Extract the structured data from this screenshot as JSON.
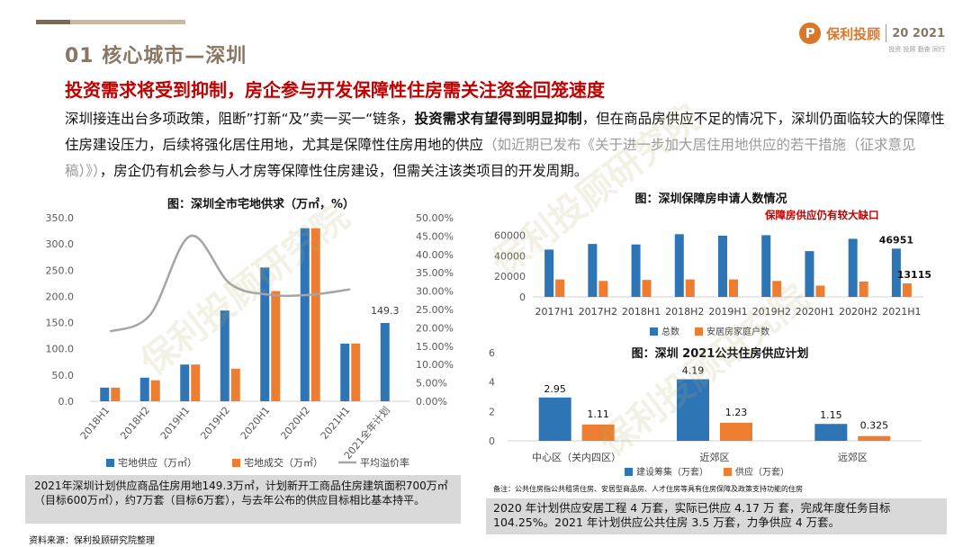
{
  "header": {
    "section_title": "01 核心城市—深圳",
    "headline": "投资需求将受到抑制，房企参与开发保障性住房需关注资金回笼速度",
    "paragraph": {
      "part1": "深圳接连出台多项政策，阻断”打新“及”卖一买一“链条，",
      "part2_bold": "投资需求有望得到明显抑制",
      "part3": "，但在商品房供应不足的情况下，深圳仍面临较大的保障性住房建设压力，后续将强化居住用地，尤其是保障性住房用地的供应",
      "part4_grey": "（如近期已发布《关于进一步加大居住用地供应的若干措施（征求意见稿）》）",
      "part5": "，房企仍有机会参与人才房等保障性住房建设，但需关注该类项目的开发周期。"
    }
  },
  "logo": {
    "mark": "P",
    "text": "保利投顾",
    "year_prefix": "20",
    "year": "2021",
    "subtitle": "投资 投顾  勤奋 同行"
  },
  "watermark": "保利投顾研究院",
  "colors": {
    "blue": "#2e75b6",
    "orange": "#ed7d31",
    "grey_line": "#a5a5a5",
    "title_brown": "#8a7763",
    "headline_red": "#c00000"
  },
  "chart_data": [
    {
      "type": "bar",
      "title": "图：深圳全市宅地供求（万㎡，%）",
      "categories": [
        "2018H1",
        "2018H2",
        "2019H1",
        "2019H2",
        "2020H1",
        "2020H2",
        "2021H1",
        "2021全年计划"
      ],
      "series": [
        {
          "name": "宅地供应（万㎡）",
          "values": [
            26,
            45,
            70,
            173,
            255,
            330,
            110,
            149.3
          ]
        },
        {
          "name": "宅地成交（万㎡）",
          "values": [
            26,
            40,
            70,
            62,
            210,
            330,
            110,
            null
          ]
        },
        {
          "name": "平均溢价率",
          "type": "line",
          "values": [
            0.19,
            0.235,
            0.45,
            0.32,
            0.29,
            0.29,
            0.305,
            null
          ]
        }
      ],
      "data_labels": [
        {
          "category": "2021全年计划",
          "text": "149.3"
        }
      ],
      "y_left": {
        "ticks": [
          "0.0",
          "50.0",
          "100.0",
          "150.0",
          "200.0",
          "250.0",
          "300.0",
          "350.0"
        ],
        "range": [
          0,
          350
        ]
      },
      "y_right": {
        "ticks": [
          "0.00%",
          "5.00%",
          "10.00%",
          "15.00%",
          "20.00%",
          "25.00%",
          "30.00%",
          "35.00%",
          "40.00%",
          "45.00%",
          "50.00%"
        ],
        "range": [
          0,
          0.5
        ]
      },
      "legend": "bottom"
    },
    {
      "type": "bar",
      "title": "图：深圳保障房申请人数情况",
      "annotation": "保障房供应仍有较大缺口",
      "categories": [
        "2017H1",
        "2017H2",
        "2018H1",
        "2018H2",
        "2019H1",
        "2019H2",
        "2020H1",
        "2020H2",
        "2021H1"
      ],
      "series": [
        {
          "name": "总数",
          "values": [
            46000,
            51500,
            51000,
            61000,
            59500,
            60000,
            44500,
            56500,
            46951
          ]
        },
        {
          "name": "安居房家庭户数",
          "values": [
            17000,
            15500,
            16500,
            17000,
            17000,
            15500,
            11000,
            15000,
            13115
          ]
        }
      ],
      "data_labels": [
        {
          "category": "2021H1",
          "series": "总数",
          "text": "46951"
        },
        {
          "category": "2021H1",
          "series": "安居房家庭户数",
          "text": "13115"
        }
      ],
      "y": {
        "ticks": [
          "0",
          "20000",
          "40000",
          "60000"
        ],
        "range": [
          0,
          70000
        ]
      },
      "legend": "bottom"
    },
    {
      "type": "bar",
      "title": "图：深圳 2021公共住房供应计划",
      "categories": [
        "中心区（关内四区）",
        "近郊区",
        "远郊区"
      ],
      "series": [
        {
          "name": "建设筹集（万套）",
          "values": [
            2.95,
            4.19,
            1.15
          ]
        },
        {
          "name": "供应（万套）",
          "values": [
            1.11,
            1.23,
            0.325
          ]
        }
      ],
      "data_labels": [
        [
          "2.95",
          "4.19",
          "1.15"
        ],
        [
          "1.11",
          "1.23",
          "0.325"
        ]
      ],
      "y": {
        "ticks": [
          "0",
          "2",
          "4",
          "6"
        ],
        "range": [
          0,
          6
        ]
      },
      "legend": "bottom"
    }
  ],
  "notes": {
    "left": "2021年深圳计划供应商品住房用地149.3万㎡，计划新开工商品住房建筑面积700万㎡（目标600万㎡），约7万套（目标6万套），与去年公布的供应目标相比基本持平。",
    "small": "备注：公共住房指公共租赁住房、安居型商品房、人才住房等具有住房保障及政策支持功能的住房",
    "right": "2020 年计划供应安居工程 4 万套，实际已供应 4.17 万 套，完成年度任务目标104.25%。2021 年计划供应公共住房 3.5 万套，力争供应 4 万套。",
    "source": "资料来源：保利投顾研究院整理"
  }
}
